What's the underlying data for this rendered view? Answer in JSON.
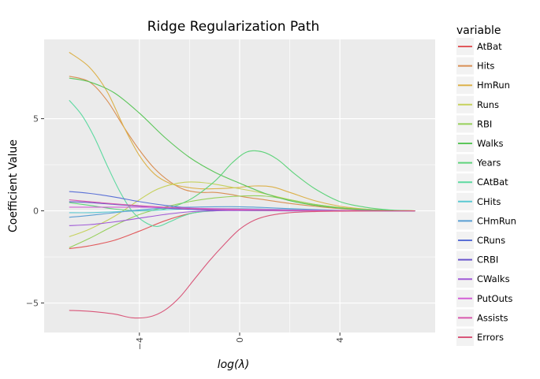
{
  "chart_data": {
    "type": "line",
    "title": "Ridge Regularization Path",
    "xlabel_base": "log(",
    "xlabel_symbol": "λ",
    "xlabel_close": ")",
    "ylabel": "Coefficient Value",
    "xlim": [
      -7.8,
      7.8
    ],
    "ylim": [
      -6.6,
      9.3
    ],
    "x_ticks": [
      -4,
      0,
      4
    ],
    "x_tick_labels": [
      "−4",
      "0",
      "4"
    ],
    "y_ticks": [
      -5,
      0,
      5
    ],
    "y_tick_labels": [
      "−5",
      "0",
      "5"
    ],
    "grid": true,
    "legend_title": "variable",
    "legend_position": "right",
    "panel_background": "#ebebeb",
    "grid_color": "#ffffff",
    "series": [
      {
        "name": "AtBat",
        "color": "#e1595b",
        "points": [
          [
            -6.8,
            -2.05
          ],
          [
            -6,
            -1.9
          ],
          [
            -5,
            -1.6
          ],
          [
            -4,
            -1.1
          ],
          [
            -3,
            -0.55
          ],
          [
            -2,
            -0.15
          ],
          [
            -1,
            0.03
          ],
          [
            0,
            0.08
          ],
          [
            1,
            0.08
          ],
          [
            2,
            0.06
          ],
          [
            3,
            0.04
          ],
          [
            4,
            0.02
          ],
          [
            5,
            0.01
          ],
          [
            6,
            0.0
          ],
          [
            7,
            0.0
          ]
        ]
      },
      {
        "name": "Hits",
        "color": "#d98f54",
        "points": [
          [
            -6.8,
            7.3
          ],
          [
            -6,
            7.0
          ],
          [
            -5.3,
            6.0
          ],
          [
            -4.6,
            4.5
          ],
          [
            -4,
            3.3
          ],
          [
            -3.4,
            2.3
          ],
          [
            -2.8,
            1.6
          ],
          [
            -2.2,
            1.15
          ],
          [
            -1.6,
            1.0
          ],
          [
            -1,
            1.0
          ],
          [
            -0.4,
            0.9
          ],
          [
            0.2,
            0.75
          ],
          [
            1,
            0.6
          ],
          [
            2,
            0.4
          ],
          [
            3,
            0.25
          ],
          [
            4,
            0.12
          ],
          [
            5,
            0.05
          ],
          [
            6,
            0.02
          ],
          [
            7,
            0.0
          ]
        ]
      },
      {
        "name": "HmRun",
        "color": "#dcb14a",
        "points": [
          [
            -6.8,
            8.6
          ],
          [
            -6,
            7.8
          ],
          [
            -5.3,
            6.5
          ],
          [
            -4.6,
            4.5
          ],
          [
            -4,
            3.0
          ],
          [
            -3.4,
            2.0
          ],
          [
            -2.8,
            1.5
          ],
          [
            -2.2,
            1.3
          ],
          [
            -1.6,
            1.2
          ],
          [
            -1,
            1.2
          ],
          [
            -0.2,
            1.25
          ],
          [
            0.6,
            1.35
          ],
          [
            1.3,
            1.3
          ],
          [
            2,
            1.0
          ],
          [
            3,
            0.55
          ],
          [
            4,
            0.25
          ],
          [
            5,
            0.1
          ],
          [
            6,
            0.03
          ],
          [
            7,
            0.0
          ]
        ]
      },
      {
        "name": "Runs",
        "color": "#c6d15c",
        "points": [
          [
            -6.8,
            -1.4
          ],
          [
            -6,
            -1.0
          ],
          [
            -5,
            -0.3
          ],
          [
            -4,
            0.6
          ],
          [
            -3.4,
            1.1
          ],
          [
            -2.8,
            1.4
          ],
          [
            -2.2,
            1.55
          ],
          [
            -1.6,
            1.55
          ],
          [
            -1,
            1.45
          ],
          [
            -0.2,
            1.25
          ],
          [
            0.6,
            1.05
          ],
          [
            1.4,
            0.8
          ],
          [
            2.2,
            0.55
          ],
          [
            3,
            0.35
          ],
          [
            4,
            0.18
          ],
          [
            5,
            0.08
          ],
          [
            6,
            0.03
          ],
          [
            7,
            0.0
          ]
        ]
      },
      {
        "name": "RBI",
        "color": "#96d05a",
        "points": [
          [
            -6.8,
            -2.0
          ],
          [
            -6,
            -1.5
          ],
          [
            -5,
            -0.8
          ],
          [
            -4,
            -0.2
          ],
          [
            -3,
            0.2
          ],
          [
            -2,
            0.5
          ],
          [
            -1,
            0.7
          ],
          [
            0,
            0.8
          ],
          [
            1,
            0.8
          ],
          [
            2,
            0.6
          ],
          [
            3,
            0.35
          ],
          [
            4,
            0.18
          ],
          [
            5,
            0.08
          ],
          [
            6,
            0.02
          ],
          [
            7,
            0.0
          ]
        ]
      },
      {
        "name": "Walks",
        "color": "#5cc65a",
        "points": [
          [
            -6.8,
            7.2
          ],
          [
            -6,
            7.0
          ],
          [
            -5,
            6.4
          ],
          [
            -4,
            5.3
          ],
          [
            -3,
            4.0
          ],
          [
            -2,
            2.9
          ],
          [
            -1,
            2.1
          ],
          [
            0,
            1.5
          ],
          [
            1,
            0.95
          ],
          [
            2,
            0.55
          ],
          [
            3,
            0.3
          ],
          [
            4,
            0.15
          ],
          [
            5,
            0.06
          ],
          [
            6,
            0.02
          ],
          [
            7,
            0.0
          ]
        ]
      },
      {
        "name": "Years",
        "color": "#5fd37b",
        "points": [
          [
            -6.8,
            0.45
          ],
          [
            -6,
            0.3
          ],
          [
            -5,
            0.1
          ],
          [
            -4,
            0.0
          ],
          [
            -3,
            0.1
          ],
          [
            -2,
            0.6
          ],
          [
            -1,
            1.6
          ],
          [
            -0.3,
            2.6
          ],
          [
            0.3,
            3.2
          ],
          [
            0.9,
            3.2
          ],
          [
            1.5,
            2.8
          ],
          [
            2.2,
            2.0
          ],
          [
            3,
            1.2
          ],
          [
            4,
            0.5
          ],
          [
            5,
            0.2
          ],
          [
            6,
            0.05
          ],
          [
            7,
            0.0
          ]
        ]
      },
      {
        "name": "CAtBat",
        "color": "#5dd9a0",
        "points": [
          [
            -6.8,
            6.0
          ],
          [
            -6.3,
            5.2
          ],
          [
            -5.8,
            4.0
          ],
          [
            -5.3,
            2.5
          ],
          [
            -4.8,
            1.1
          ],
          [
            -4.3,
            0.0
          ],
          [
            -3.8,
            -0.6
          ],
          [
            -3.3,
            -0.85
          ],
          [
            -2.8,
            -0.6
          ],
          [
            -2.3,
            -0.3
          ],
          [
            -1.8,
            -0.1
          ],
          [
            -1,
            0.0
          ],
          [
            0,
            0.05
          ],
          [
            1,
            0.05
          ],
          [
            2,
            0.03
          ],
          [
            3,
            0.02
          ],
          [
            4,
            0.01
          ],
          [
            5,
            0.0
          ],
          [
            6,
            0.0
          ],
          [
            7,
            0.0
          ]
        ]
      },
      {
        "name": "CHits",
        "color": "#5bc9d2",
        "points": [
          [
            -6.8,
            -0.1
          ],
          [
            -6,
            -0.1
          ],
          [
            -5,
            -0.05
          ],
          [
            -4,
            0.0
          ],
          [
            -3,
            0.05
          ],
          [
            -2,
            0.1
          ],
          [
            -1,
            0.12
          ],
          [
            0,
            0.12
          ],
          [
            1,
            0.1
          ],
          [
            2,
            0.07
          ],
          [
            3,
            0.04
          ],
          [
            4,
            0.02
          ],
          [
            5,
            0.01
          ],
          [
            6,
            0.0
          ],
          [
            7,
            0.0
          ]
        ]
      },
      {
        "name": "CHmRun",
        "color": "#5a9fd4",
        "points": [
          [
            -6.8,
            -0.35
          ],
          [
            -6,
            -0.25
          ],
          [
            -5,
            -0.1
          ],
          [
            -4,
            0.05
          ],
          [
            -3,
            0.15
          ],
          [
            -2,
            0.2
          ],
          [
            -1,
            0.22
          ],
          [
            0,
            0.22
          ],
          [
            1,
            0.18
          ],
          [
            2,
            0.12
          ],
          [
            3,
            0.07
          ],
          [
            4,
            0.03
          ],
          [
            5,
            0.01
          ],
          [
            6,
            0.0
          ],
          [
            7,
            0.0
          ]
        ]
      },
      {
        "name": "CRuns",
        "color": "#5a70d6",
        "points": [
          [
            -6.8,
            1.05
          ],
          [
            -6,
            0.95
          ],
          [
            -5,
            0.75
          ],
          [
            -4,
            0.5
          ],
          [
            -3,
            0.3
          ],
          [
            -2,
            0.15
          ],
          [
            -1,
            0.05
          ],
          [
            0,
            0.02
          ],
          [
            1,
            0.01
          ],
          [
            2,
            0.0
          ],
          [
            3,
            0.0
          ],
          [
            4,
            0.0
          ],
          [
            5,
            0.0
          ],
          [
            6,
            0.0
          ],
          [
            7,
            0.0
          ]
        ]
      },
      {
        "name": "CRBI",
        "color": "#6a55cc",
        "points": [
          [
            -6.8,
            0.5
          ],
          [
            -6,
            0.45
          ],
          [
            -5,
            0.35
          ],
          [
            -4,
            0.25
          ],
          [
            -3,
            0.15
          ],
          [
            -2,
            0.08
          ],
          [
            -1,
            0.04
          ],
          [
            0,
            0.02
          ],
          [
            1,
            0.01
          ],
          [
            2,
            0.0
          ],
          [
            3,
            0.0
          ],
          [
            4,
            0.0
          ],
          [
            5,
            0.0
          ],
          [
            6,
            0.0
          ],
          [
            7,
            0.0
          ]
        ]
      },
      {
        "name": "CWalks",
        "color": "#a05ad6",
        "points": [
          [
            -6.8,
            -0.8
          ],
          [
            -6,
            -0.75
          ],
          [
            -5,
            -0.6
          ],
          [
            -4,
            -0.4
          ],
          [
            -3,
            -0.2
          ],
          [
            -2,
            -0.05
          ],
          [
            -1,
            0.0
          ],
          [
            0,
            0.02
          ],
          [
            1,
            0.02
          ],
          [
            2,
            0.01
          ],
          [
            3,
            0.0
          ],
          [
            4,
            0.0
          ],
          [
            5,
            0.0
          ],
          [
            6,
            0.0
          ],
          [
            7,
            0.0
          ]
        ]
      },
      {
        "name": "PutOuts",
        "color": "#d35fd6",
        "points": [
          [
            -6.8,
            0.2
          ],
          [
            -6,
            0.2
          ],
          [
            -5,
            0.2
          ],
          [
            -4,
            0.2
          ],
          [
            -3,
            0.18
          ],
          [
            -2,
            0.15
          ],
          [
            -1,
            0.12
          ],
          [
            0,
            0.1
          ],
          [
            1,
            0.08
          ],
          [
            2,
            0.05
          ],
          [
            3,
            0.03
          ],
          [
            4,
            0.02
          ],
          [
            5,
            0.01
          ],
          [
            6,
            0.0
          ],
          [
            7,
            0.0
          ]
        ]
      },
      {
        "name": "Assists",
        "color": "#d85aad",
        "points": [
          [
            -6.8,
            0.6
          ],
          [
            -6,
            0.5
          ],
          [
            -5,
            0.38
          ],
          [
            -4,
            0.28
          ],
          [
            -3,
            0.2
          ],
          [
            -2,
            0.13
          ],
          [
            -1,
            0.08
          ],
          [
            0,
            0.05
          ],
          [
            1,
            0.03
          ],
          [
            2,
            0.02
          ],
          [
            3,
            0.01
          ],
          [
            4,
            0.0
          ],
          [
            5,
            0.0
          ],
          [
            6,
            0.0
          ],
          [
            7,
            0.0
          ]
        ]
      },
      {
        "name": "Errors",
        "color": "#d9577a",
        "points": [
          [
            -6.8,
            -5.4
          ],
          [
            -6,
            -5.45
          ],
          [
            -5,
            -5.6
          ],
          [
            -4.3,
            -5.8
          ],
          [
            -3.6,
            -5.75
          ],
          [
            -3,
            -5.4
          ],
          [
            -2.4,
            -4.7
          ],
          [
            -1.8,
            -3.7
          ],
          [
            -1.2,
            -2.7
          ],
          [
            -0.6,
            -1.8
          ],
          [
            0,
            -1.0
          ],
          [
            0.6,
            -0.5
          ],
          [
            1.2,
            -0.25
          ],
          [
            2,
            -0.1
          ],
          [
            3,
            -0.04
          ],
          [
            4,
            -0.02
          ],
          [
            5,
            -0.01
          ],
          [
            6,
            0.0
          ],
          [
            7,
            0.0
          ]
        ]
      }
    ]
  }
}
